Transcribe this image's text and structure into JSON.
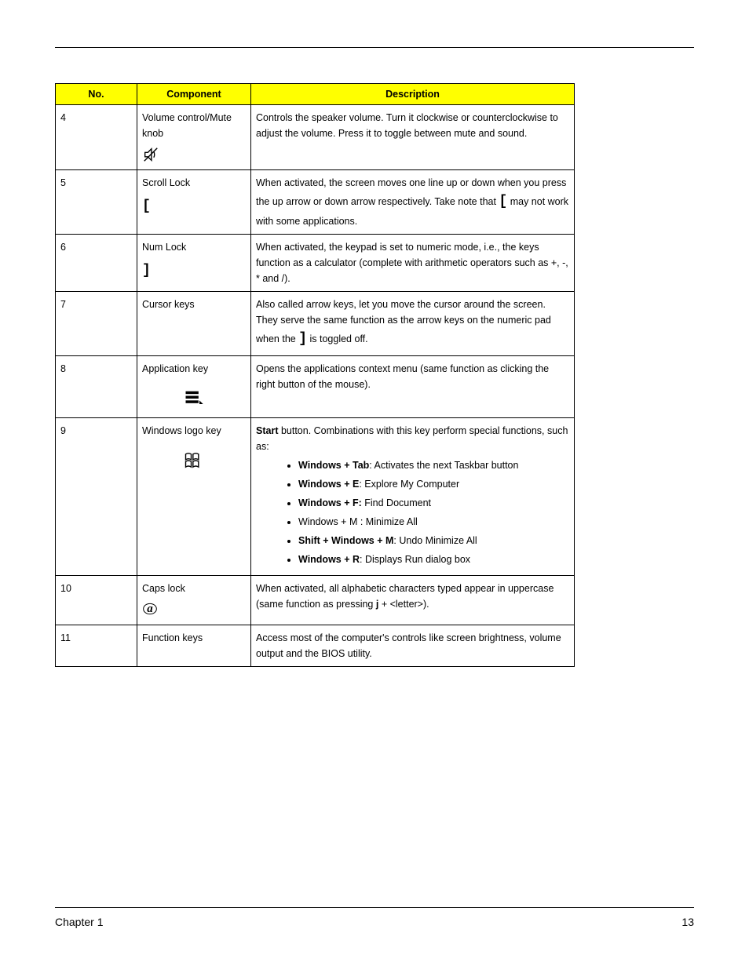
{
  "table": {
    "headers": {
      "no": "No.",
      "component": "Component",
      "description": "Description"
    },
    "header_bg": "#ffff00",
    "border_color": "#000000",
    "font_size_pt": 9,
    "rows": [
      {
        "no": "4",
        "component": "Volume control/Mute knob",
        "icon": "volume-icon",
        "description_html": "Controls the speaker volume. Turn it clockwise or counterclockwise to adjust the volume. Press it to toggle between mute and sound."
      },
      {
        "no": "5",
        "component": "Scroll Lock",
        "icon": "bracket-icon",
        "description_html": "When activated, the screen moves one line up or down when you press the up arrow or down arrow respectively. Take note that <span class=\"bracket\">[</span> may not work with some applications."
      },
      {
        "no": "6",
        "component": "Num Lock",
        "icon": "bracket-close-icon",
        "description_html": "When activated, the keypad is set to numeric mode, i.e., the keys function as a calculator (complete with arithmetic operators such as +, -, * and /)."
      },
      {
        "no": "7",
        "component": "Cursor keys",
        "icon": null,
        "description_html": "Also called arrow keys, let you move the cursor around the screen. They serve the same function as the arrow keys on the numeric pad when the <span class=\"bracket\">]</span> is toggled off."
      },
      {
        "no": "8",
        "component": "Application key",
        "icon": "app-key-icon",
        "icon_big": true,
        "description_html": "Opens the applications context menu (same function as clicking the right button of the mouse)."
      },
      {
        "no": "9",
        "component": "Windows logo key",
        "icon": "windows-logo-icon",
        "icon_big": true,
        "description_html": "<b>Start</b> button. Combinations with this key perform special functions, such as:",
        "list": [
          "<b>Windows + Tab</b>: Activates the next Taskbar button",
          "<b>Windows + E</b>: Explore My Computer",
          "<b>Windows + F:</b> Find Document",
          "Windows  + M : Minimize All",
          "<b>Shift + Windows + M</b>: Undo Minimize All",
          "<b>Windows + R</b>: Displays Run dialog box"
        ]
      },
      {
        "no": "10",
        "component": "Caps lock",
        "icon": "capslock-icon",
        "description_html": "When activated, all alphabetic characters typed appear in uppercase (same function as pressing <b>j</b> + &lt;letter&gt;)."
      },
      {
        "no": "11",
        "component": "Function keys",
        "icon": null,
        "description_html": "Access most of the computer's controls like screen brightness, volume output and the BIOS utility."
      }
    ]
  },
  "footer": {
    "chapter": "Chapter 1",
    "page": "13"
  },
  "icons": {
    "volume-icon": "<svg width='22' height='22' viewBox='0 0 24 24'><path d='M4 9v6h4l5 5V4L8 9H4z' fill='none' stroke='#000' stroke-width='1.5'/><path d='M16 8c1.5 1.5 1.5 6.5 0 8' fill='none' stroke='#000' stroke-width='1.5'/><line x1='3' y1='21' x2='21' y2='3' stroke='#000' stroke-width='1.5'/></svg>",
    "bracket-icon": "<span class='bracket'>[</span>",
    "bracket-close-icon": "<span class='bracket'>]</span>",
    "app-key-icon": "<svg width='28' height='28' viewBox='0 0 24 24'><rect x='3' y='4' width='14' height='3' fill='#000'/><rect x='3' y='9' width='14' height='3' fill='#000'/><rect x='3' y='14' width='14' height='3' fill='#000'/><path d='M18 14 L22 18 L18 18 Z' fill='#000'/></svg>",
    "windows-logo-icon": "<svg width='28' height='28' viewBox='0 0 24 24'><path d='M3 5 Q6 3 9 5 L9 11 Q6 9 3 11 Z' fill='none' stroke='#000' stroke-width='1.2'/><path d='M11 5 Q14 3 17 5 L17 11 Q14 9 11 11 Z' fill='none' stroke='#000' stroke-width='1.2'/><path d='M3 13 Q6 11 9 13 L9 19 Q6 17 3 19 Z' fill='none' stroke='#000' stroke-width='1.2'/><path d='M11 13 Q14 11 17 13 L17 19 Q14 17 11 19 Z' fill='none' stroke='#000' stroke-width='1.2'/></svg>",
    "capslock-icon": "<svg width='20' height='20' viewBox='0 0 24 24'><text x='12' y='17' text-anchor='middle' font-family='serif' font-style='italic' font-weight='bold' font-size='18'>a</text><ellipse cx='12' cy='12' rx='10' ry='8' fill='none' stroke='#000' stroke-width='1.2'/></svg>"
  }
}
